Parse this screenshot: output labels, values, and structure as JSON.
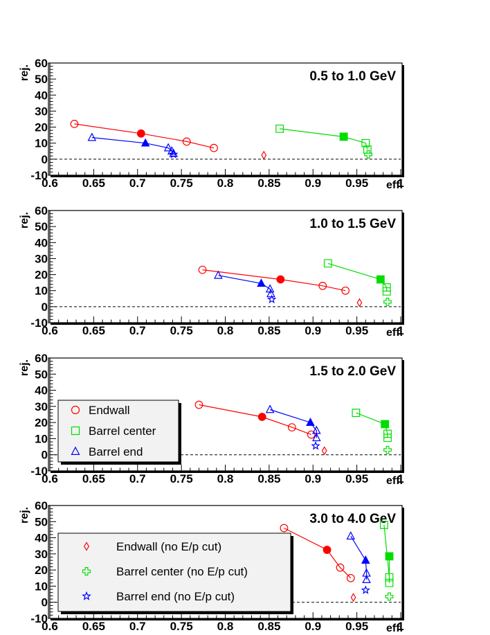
{
  "chart_data": [
    {
      "type": "scatter",
      "title": "0.5 to 1.0 GeV",
      "xlabel": "eff.",
      "ylabel": "rej.",
      "xlim": [
        0.6,
        1.0
      ],
      "ylim": [
        -10,
        60
      ],
      "xticks": [
        "0.6",
        "0.65",
        "0.7",
        "0.75",
        "0.8",
        "0.85",
        "0.9",
        "0.95",
        "1"
      ],
      "yticks": [
        "-10",
        "0",
        "10",
        "20",
        "30",
        "40",
        "50",
        "60"
      ],
      "series": [
        {
          "name": "Endwall",
          "marker": "circle",
          "color": "#ff0000",
          "connected": true,
          "x": [
            0.628,
            0.756,
            0.787
          ],
          "y": [
            22,
            11,
            7
          ]
        },
        {
          "name": "Barrel center",
          "marker": "square",
          "color": "#00dd00",
          "connected": true,
          "x": [
            0.862,
            0.96,
            0.962
          ],
          "y": [
            19,
            10,
            6
          ]
        },
        {
          "name": "Barrel end",
          "marker": "triangle",
          "color": "#0000ff",
          "connected": true,
          "x": [
            0.648,
            0.735,
            0.739,
            0.741
          ],
          "y": [
            13.5,
            7,
            5,
            3.5
          ]
        },
        {
          "name": "Endwall (no E/p cut)",
          "marker": "diamond",
          "color": "#ff0000",
          "connected": false,
          "x": [
            0.844
          ],
          "y": [
            2.5
          ]
        },
        {
          "name": "Barrel center (no E/p cut)",
          "marker": "cross",
          "color": "#00dd00",
          "connected": false,
          "x": [
            0.963
          ],
          "y": [
            3
          ]
        },
        {
          "name": "Barrel end (no E/p cut)",
          "marker": "star",
          "color": "#0000ff",
          "connected": false,
          "x": [
            0.741
          ],
          "y": [
            3
          ]
        }
      ],
      "highlighted": [
        {
          "series": "Endwall",
          "marker": "circle",
          "color": "#ff0000",
          "x": 0.704,
          "y": 16
        },
        {
          "series": "Barrel center",
          "marker": "square",
          "color": "#00dd00",
          "x": 0.935,
          "y": 14
        },
        {
          "series": "Barrel end",
          "marker": "triangle",
          "color": "#0000ff",
          "x": 0.709,
          "y": 10
        }
      ],
      "reference_line": {
        "y": 0,
        "style": "dashed"
      },
      "legend": null
    },
    {
      "type": "scatter",
      "title": "1.0 to 1.5 GeV",
      "xlabel": "eff.",
      "ylabel": "rej.",
      "xlim": [
        0.6,
        1.0
      ],
      "ylim": [
        -10,
        60
      ],
      "xticks": [
        "0.6",
        "0.65",
        "0.7",
        "0.75",
        "0.8",
        "0.85",
        "0.9",
        "0.95",
        "1"
      ],
      "yticks": [
        "-10",
        "0",
        "10",
        "20",
        "30",
        "40",
        "50",
        "60"
      ],
      "series": [
        {
          "name": "Endwall",
          "marker": "circle",
          "color": "#ff0000",
          "connected": true,
          "x": [
            0.774,
            0.911,
            0.937
          ],
          "y": [
            23,
            13,
            10
          ]
        },
        {
          "name": "Barrel center",
          "marker": "square",
          "color": "#00dd00",
          "connected": true,
          "x": [
            0.917,
            0.984,
            0.984
          ],
          "y": [
            27,
            12,
            9.5
          ]
        },
        {
          "name": "Barrel end",
          "marker": "triangle",
          "color": "#0000ff",
          "connected": true,
          "x": [
            0.792,
            0.851,
            0.852
          ],
          "y": [
            19.5,
            11,
            8
          ]
        },
        {
          "name": "Endwall (no E/p cut)",
          "marker": "diamond",
          "color": "#ff0000",
          "connected": false,
          "x": [
            0.953
          ],
          "y": [
            2.5
          ]
        },
        {
          "name": "Barrel center (no E/p cut)",
          "marker": "cross",
          "color": "#00dd00",
          "connected": false,
          "x": [
            0.985
          ],
          "y": [
            3
          ]
        },
        {
          "name": "Barrel end (no E/p cut)",
          "marker": "star",
          "color": "#0000ff",
          "connected": false,
          "x": [
            0.853
          ],
          "y": [
            4.5
          ]
        }
      ],
      "highlighted": [
        {
          "series": "Endwall",
          "marker": "circle",
          "color": "#ff0000",
          "x": 0.863,
          "y": 17
        },
        {
          "series": "Barrel center",
          "marker": "square",
          "color": "#00dd00",
          "x": 0.977,
          "y": 17
        },
        {
          "series": "Barrel end",
          "marker": "triangle",
          "color": "#0000ff",
          "x": 0.841,
          "y": 14.5
        }
      ],
      "reference_line": {
        "y": 0,
        "style": "dashed"
      },
      "legend": null
    },
    {
      "type": "scatter",
      "title": "1.5 to 2.0 GeV",
      "xlabel": "eff.",
      "ylabel": "rej.",
      "xlim": [
        0.6,
        1.0
      ],
      "ylim": [
        -10,
        60
      ],
      "xticks": [
        "0.6",
        "0.65",
        "0.7",
        "0.75",
        "0.8",
        "0.85",
        "0.9",
        "0.95",
        "1"
      ],
      "yticks": [
        "-10",
        "0",
        "10",
        "20",
        "30",
        "40",
        "50",
        "60"
      ],
      "series": [
        {
          "name": "Endwall",
          "marker": "circle",
          "color": "#ff0000",
          "connected": true,
          "x": [
            0.77,
            0.876,
            0.898
          ],
          "y": [
            31,
            17,
            12.5
          ]
        },
        {
          "name": "Barrel center",
          "marker": "square",
          "color": "#00dd00",
          "connected": true,
          "x": [
            0.949,
            0.985,
            0.985
          ],
          "y": [
            26,
            13,
            10.5
          ]
        },
        {
          "name": "Barrel end",
          "marker": "triangle",
          "color": "#0000ff",
          "connected": true,
          "x": [
            0.851,
            0.904,
            0.904
          ],
          "y": [
            28,
            15,
            10.5
          ]
        },
        {
          "name": "Endwall (no E/p cut)",
          "marker": "diamond",
          "color": "#ff0000",
          "connected": false,
          "x": [
            0.913
          ],
          "y": [
            2.5
          ]
        },
        {
          "name": "Barrel center (no E/p cut)",
          "marker": "cross",
          "color": "#00dd00",
          "connected": false,
          "x": [
            0.985
          ],
          "y": [
            3
          ]
        },
        {
          "name": "Barrel end (no E/p cut)",
          "marker": "star",
          "color": "#0000ff",
          "connected": false,
          "x": [
            0.903
          ],
          "y": [
            5.5
          ]
        }
      ],
      "highlighted": [
        {
          "series": "Endwall",
          "marker": "circle",
          "color": "#ff0000",
          "x": 0.842,
          "y": 23.5
        },
        {
          "series": "Barrel center",
          "marker": "square",
          "color": "#00dd00",
          "x": 0.982,
          "y": 19
        },
        {
          "series": "Barrel end",
          "marker": "triangle",
          "color": "#0000ff",
          "x": 0.897,
          "y": 20
        }
      ],
      "reference_line": {
        "y": 0,
        "style": "dashed"
      },
      "legend": {
        "position": "middle-left",
        "entries": [
          "Endwall",
          "Barrel center",
          "Barrel end"
        ]
      }
    },
    {
      "type": "scatter",
      "title": "3.0 to 4.0 GeV",
      "xlabel": "eff.",
      "ylabel": "rej.",
      "xlim": [
        0.6,
        1.0
      ],
      "ylim": [
        -10,
        60
      ],
      "xticks": [
        "0.6",
        "0.65",
        "0.7",
        "0.75",
        "0.8",
        "0.85",
        "0.9",
        "0.95",
        "1"
      ],
      "yticks": [
        "-10",
        "0",
        "10",
        "20",
        "30",
        "40",
        "50",
        "60"
      ],
      "series": [
        {
          "name": "Endwall",
          "marker": "circle",
          "color": "#ff0000",
          "connected": true,
          "x": [
            0.867,
            0.931,
            0.943
          ],
          "y": [
            46,
            21.5,
            15
          ]
        },
        {
          "name": "Barrel center",
          "marker": "square",
          "color": "#00dd00",
          "connected": true,
          "x": [
            0.981,
            0.987,
            0.987
          ],
          "y": [
            48,
            15.5,
            12
          ]
        },
        {
          "name": "Barrel end",
          "marker": "triangle",
          "color": "#0000ff",
          "connected": true,
          "x": [
            0.943,
            0.961,
            0.961
          ],
          "y": [
            41,
            18,
            14
          ]
        },
        {
          "name": "Endwall (no E/p cut)",
          "marker": "diamond",
          "color": "#ff0000",
          "connected": false,
          "x": [
            0.946
          ],
          "y": [
            3
          ]
        },
        {
          "name": "Barrel center (no E/p cut)",
          "marker": "cross",
          "color": "#00dd00",
          "connected": false,
          "x": [
            0.987
          ],
          "y": [
            3.5
          ]
        },
        {
          "name": "Barrel end (no E/p cut)",
          "marker": "star",
          "color": "#0000ff",
          "connected": false,
          "x": [
            0.96
          ],
          "y": [
            7.5
          ]
        }
      ],
      "highlighted": [
        {
          "series": "Endwall",
          "marker": "circle",
          "color": "#ff0000",
          "x": 0.916,
          "y": 32.5
        },
        {
          "series": "Barrel center",
          "marker": "square",
          "color": "#00dd00",
          "x": 0.987,
          "y": 28.5
        },
        {
          "series": "Barrel end",
          "marker": "triangle",
          "color": "#0000ff",
          "x": 0.96,
          "y": 26
        }
      ],
      "reference_line": {
        "y": 0,
        "style": "dashed"
      },
      "legend": {
        "position": "middle-left",
        "entries": [
          "Endwall (no E/p cut)",
          "Barrel center (no E/p cut)",
          "Barrel end (no E/p cut)"
        ]
      }
    }
  ]
}
